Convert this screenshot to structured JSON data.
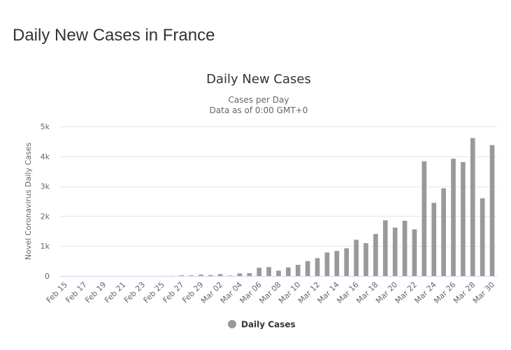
{
  "page": {
    "title": "Daily New Cases in France"
  },
  "chart_data": {
    "type": "bar",
    "title": "Daily New Cases",
    "subtitle_lines": [
      "Cases per Day",
      "Data as of 0:00 GMT+0"
    ],
    "xlabel": "",
    "ylabel": "Novel Coronavirus Daily Cases",
    "ylim": [
      0,
      5000
    ],
    "yticks": [
      0,
      1000,
      2000,
      3000,
      4000,
      5000
    ],
    "ytick_labels": [
      "0",
      "1k",
      "2k",
      "3k",
      "4k",
      "5k"
    ],
    "grid": true,
    "legend_position": "bottom-center",
    "bar_color": "#999999",
    "categories": [
      "Feb 15",
      "Feb 16",
      "Feb 17",
      "Feb 18",
      "Feb 19",
      "Feb 20",
      "Feb 21",
      "Feb 22",
      "Feb 23",
      "Feb 24",
      "Feb 25",
      "Feb 26",
      "Feb 27",
      "Feb 28",
      "Feb 29",
      "Mar 01",
      "Mar 02",
      "Mar 03",
      "Mar 04",
      "Mar 05",
      "Mar 06",
      "Mar 07",
      "Mar 08",
      "Mar 09",
      "Mar 10",
      "Mar 11",
      "Mar 12",
      "Mar 13",
      "Mar 14",
      "Mar 15",
      "Mar 16",
      "Mar 17",
      "Mar 18",
      "Mar 19",
      "Mar 20",
      "Mar 21",
      "Mar 22",
      "Mar 23",
      "Mar 24",
      "Mar 25",
      "Mar 26",
      "Mar 27",
      "Mar 28",
      "Mar 29",
      "Mar 30"
    ],
    "tick_labels_shown": [
      "Feb 15",
      "Feb 17",
      "Feb 19",
      "Feb 21",
      "Feb 23",
      "Feb 25",
      "Feb 27",
      "Feb 29",
      "Mar 02",
      "Mar 04",
      "Mar 06",
      "Mar 08",
      "Mar 10",
      "Mar 12",
      "Mar 14",
      "Mar 16",
      "Mar 18",
      "Mar 20",
      "Mar 22",
      "Mar 24",
      "Mar 26",
      "Mar 28",
      "Mar 30"
    ],
    "series": [
      {
        "name": "Daily Cases",
        "values": [
          0,
          0,
          0,
          0,
          0,
          0,
          0,
          0,
          0,
          0,
          2,
          4,
          20,
          19,
          43,
          30,
          61,
          13,
          84,
          92,
          276,
          296,
          177,
          286,
          372,
          497,
          595,
          785,
          838,
          924,
          1210,
          1097,
          1404,
          1861,
          1617,
          1847,
          1559,
          3838,
          2446,
          2931,
          3922,
          3809,
          4611,
          2599,
          4376
        ]
      }
    ]
  }
}
